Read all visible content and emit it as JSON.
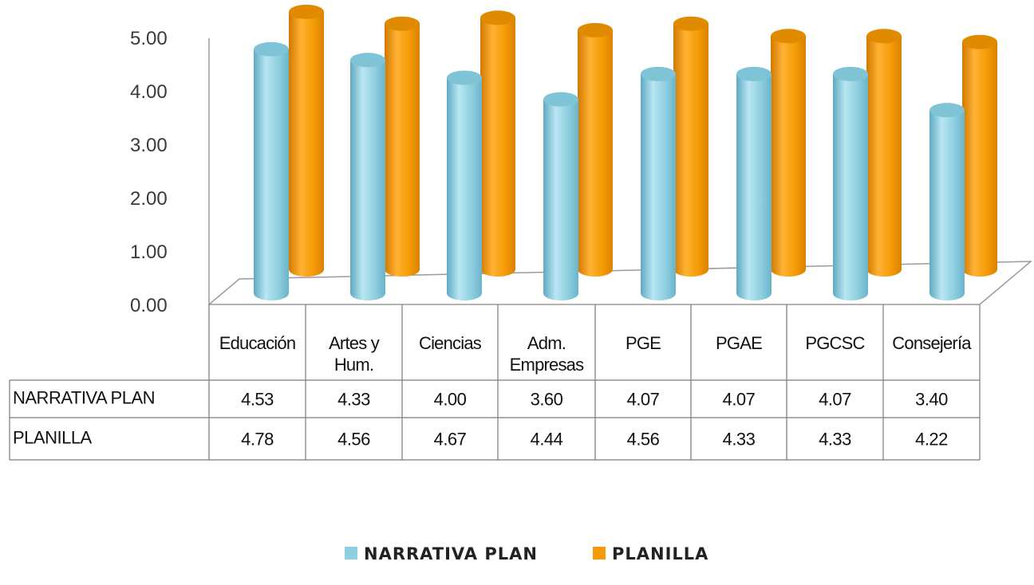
{
  "chart_data": {
    "type": "bar",
    "categories": [
      [
        "Educación"
      ],
      [
        "Artes y",
        "Hum."
      ],
      [
        "Ciencias"
      ],
      [
        "Adm.",
        "Empresas"
      ],
      [
        "PGE"
      ],
      [
        "PGAE"
      ],
      [
        "PGCSC"
      ],
      [
        "Consejería"
      ]
    ],
    "series": [
      {
        "name": "NARRATIVA PLAN",
        "color": "#8ecfe0",
        "values": [
          4.53,
          4.33,
          4.0,
          3.6,
          4.07,
          4.07,
          4.07,
          3.4
        ],
        "labels": [
          "4.53",
          "4.33",
          "4.00",
          "3.60",
          "4.07",
          "4.07",
          "4.07",
          "3.40"
        ]
      },
      {
        "name": "PLANILLA",
        "color": "#f59b05",
        "values": [
          4.78,
          4.56,
          4.67,
          4.44,
          4.56,
          4.33,
          4.33,
          4.22
        ],
        "labels": [
          "4.78",
          "4.56",
          "4.67",
          "4.44",
          "4.56",
          "4.33",
          "4.33",
          "4.22"
        ]
      }
    ],
    "y_ticks": [
      "0.00",
      "1.00",
      "2.00",
      "3.00",
      "4.00",
      "5.00"
    ],
    "ylim": [
      0,
      5
    ],
    "shape": "3d-cylinder",
    "data_table": true,
    "legend_position": "bottom"
  }
}
